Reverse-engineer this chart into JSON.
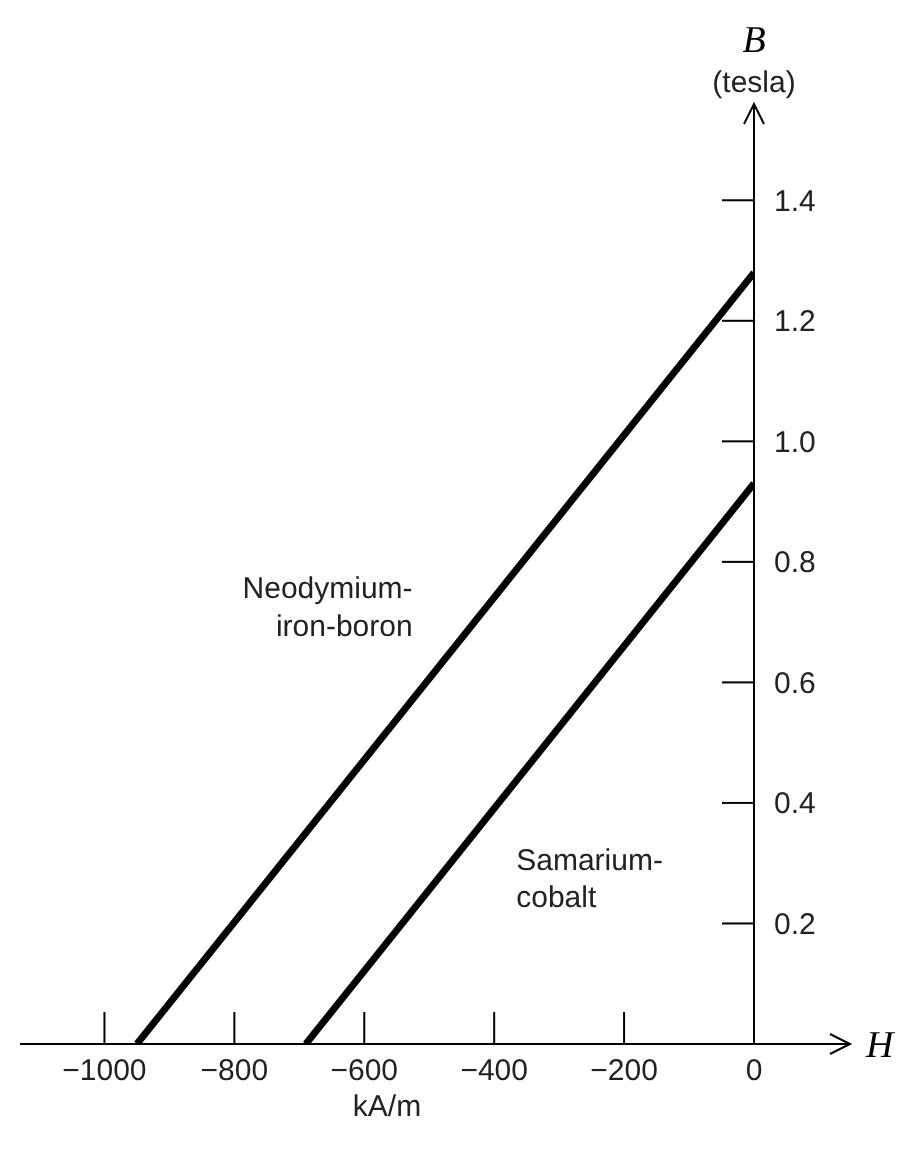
{
  "chart_data": {
    "type": "line",
    "xlabel": "H",
    "ylabel": "B",
    "annotations": [
      "kA/m",
      "(tesla)"
    ],
    "xlim": [
      -1130,
      0
    ],
    "xticks": [
      -1000,
      -800,
      -600,
      -400,
      -200,
      0
    ],
    "ylim": [
      0,
      1.5
    ],
    "yticks": [
      0.2,
      0.4,
      0.6,
      0.8,
      {
        "value": 1.0,
        "label": "1.0"
      },
      1.2,
      1.4
    ],
    "grid": false,
    "marker": "none",
    "line_style": "solid",
    "series": [
      {
        "name": "Neodymium-iron-boron",
        "color": "#000000",
        "x": [
          -950,
          0
        ],
        "values": [
          0,
          1.28
        ]
      },
      {
        "name": "Samarium-cobalt",
        "color": "#000000",
        "x": [
          -690,
          0
        ],
        "values": [
          0,
          0.93
        ]
      }
    ]
  }
}
